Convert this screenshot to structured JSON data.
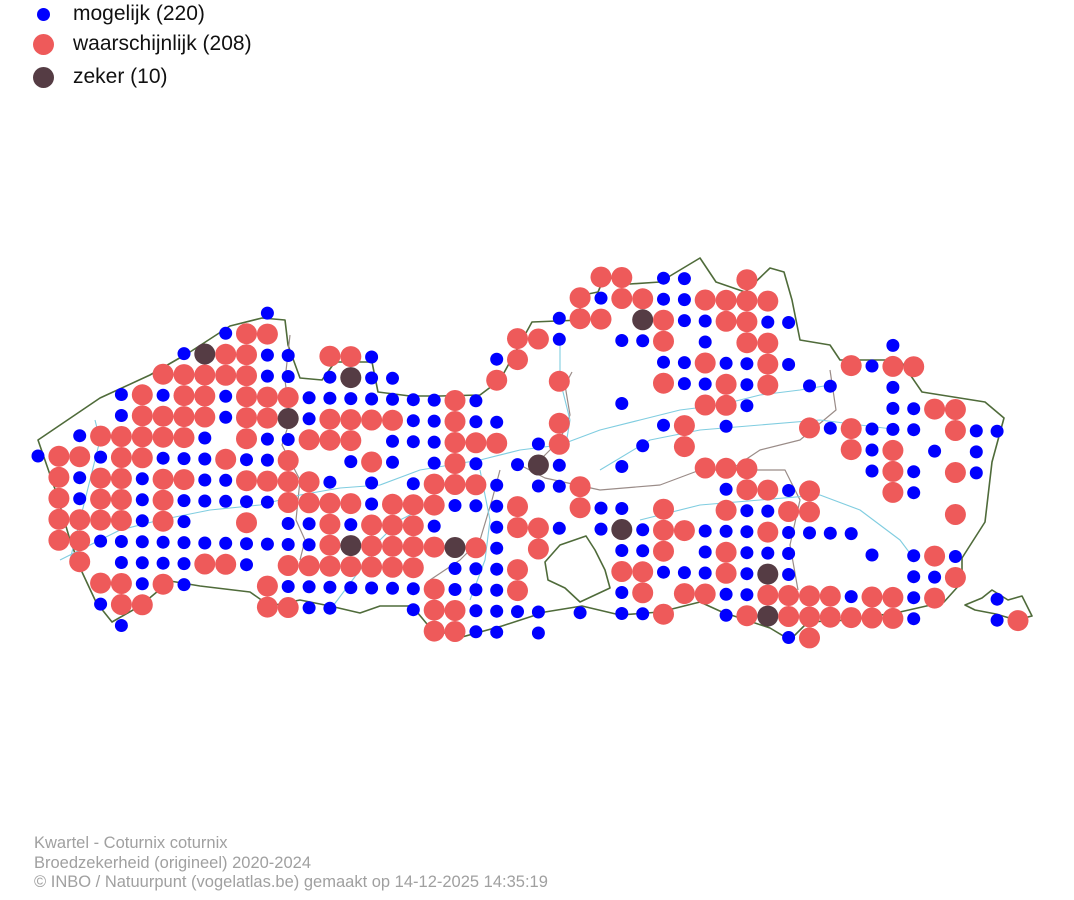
{
  "legend": [
    {
      "key": "m",
      "label": "mogelijk (220)",
      "color": "#0000ff"
    },
    {
      "key": "w",
      "label": "waarschijnlijk (208)",
      "color": "#ee5a5a"
    },
    {
      "key": "z",
      "label": "zeker (10)",
      "color": "#553c44"
    }
  ],
  "footer": {
    "line1": "Kwartel - Coturnix coturnix",
    "line2": "Broedzekerheid (origineel) 2020-2024",
    "line3": "© INBO / Natuurpunt (vogelatlas.be) gemaakt op 14-12-2025 14:35:19"
  },
  "colors": {
    "border": "#4f6b3a",
    "river": "#80cde0",
    "province": "#9a8c88"
  },
  "atlas_grid": [
    "...........................ww.mm..w.............",
    "..........................wmwwmmwwww............",
    "...........m.............mww.zwmmwwmm...........",
    ".........mww...........wwm..mmw.m.ww.....m......",
    ".......mzwwmm.wwm.....mw......mmwmmwm..wmww......",
    "......wwwwwmm.mzmm....w..w....wmmwmw.mm..m......",
    "....mwmwwmwwwmmmmmmmwm......m...wwm......mmww...",
    "....mwwwwmwwzmwwwwmmwmm..w....mw.m...wmwmmm.wmm.",
    "..mwwwwwm.wmmwww.mmmwww.mw...m.w.......wmw.m.m..",
    "mwwmwwmmmwmmw..mwm.mwm.mzm..m...www.....mwm.wm..",
    ".wmwwmwwmmwwwwm.m.mwwwm.mmw......mwwmw...wm.....",
    ".wmwwmwmmmmmwwwwmwwwmmmw..wmm.w..wmmww......w...",
    ".wwwwmwm..w.mmwmwwwm..mwwm.mzmwwmmmwmmmm........",
    ".wwmmmmmmmmmmmwzwwwwzwm.w...mmw.mwmmm...m.mwm...",
    "..w.mmmmwwm.wwwwwww.mmmw....wwmmmwmzm.....mmw...",
    "...wwmwm...wmmmmmmmwmmmw....mw.wwmmwwwwmwwmw..m.",
    "...mww.....wwmm...mwwmmmm.m.mmw..mwzwwwwwwm...mw",
    "....m..............wwmm.m...........mw.........."
  ]
}
